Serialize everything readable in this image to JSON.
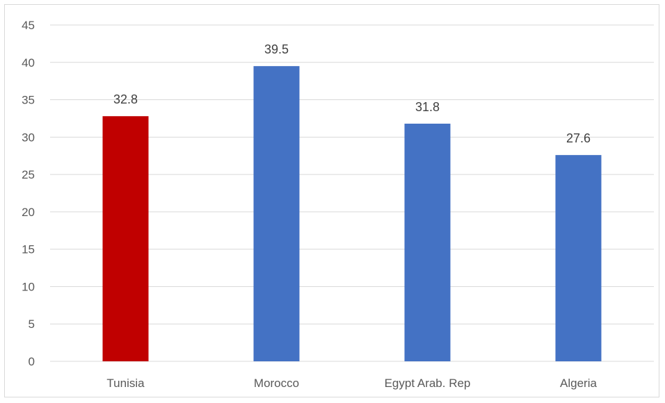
{
  "chart_data": {
    "type": "bar",
    "title": "",
    "xlabel": "",
    "ylabel": "",
    "categories": [
      "Tunisia",
      "Morocco",
      "Egypt Arab. Rep",
      "Algeria"
    ],
    "values": [
      32.8,
      39.5,
      31.8,
      27.6
    ],
    "data_labels": [
      "32.8",
      "39.5",
      "31.8",
      "27.6"
    ],
    "bar_colors": [
      "#C00000",
      "#4472C4",
      "#4472C4",
      "#4472C4"
    ],
    "ylim": [
      0,
      45
    ],
    "yticks": [
      0,
      5,
      10,
      15,
      20,
      25,
      30,
      35,
      40,
      45
    ],
    "ytick_labels": [
      "0",
      "5",
      "10",
      "15",
      "20",
      "25",
      "30",
      "35",
      "40",
      "45"
    ],
    "grid": true,
    "legend": "none"
  }
}
